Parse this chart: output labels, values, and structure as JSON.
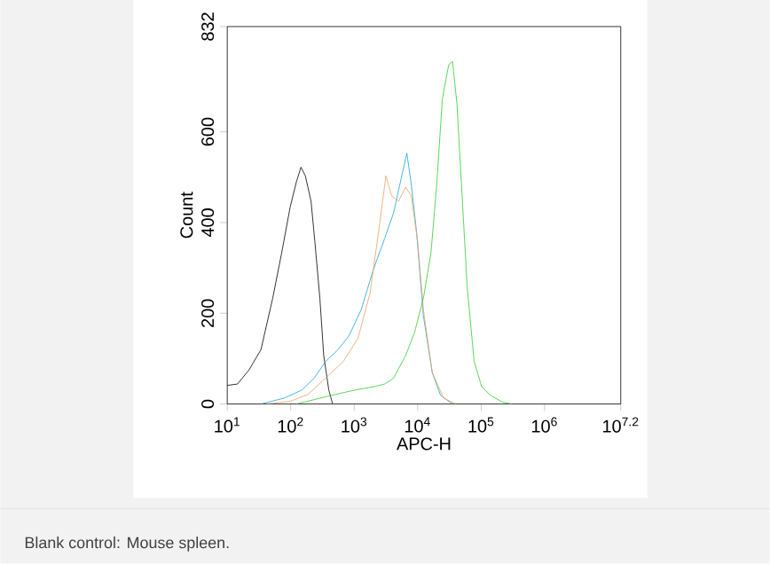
{
  "chart_data": {
    "type": "line",
    "xlabel": "APC-H",
    "ylabel": "Count",
    "log": "x",
    "line_style": "solid",
    "xlim": [
      10,
      15848932
    ],
    "ylim": [
      0,
      832
    ],
    "xticks": [
      {
        "value": 10,
        "label": "10$^{1}$"
      },
      {
        "value": 100,
        "label": "10$^{2}$"
      },
      {
        "value": 1000,
        "label": "10$^{3}$"
      },
      {
        "value": 10000,
        "label": "10$^{4}$"
      },
      {
        "value": 100000,
        "label": "10$^{5}$"
      },
      {
        "value": 1000000,
        "label": "10$^{6}$"
      },
      {
        "value": 15848932,
        "label": "10$^{7.2}$"
      }
    ],
    "yticks": [
      0,
      200,
      400,
      600,
      832
    ],
    "series": [
      {
        "color": "#000000",
        "x": [
          10,
          14.5,
          22,
          34,
          52,
          72,
          98,
          123,
          145,
          170,
          209,
          240,
          288,
          331,
          398,
          457
        ],
        "values": [
          41,
          44,
          75,
          120,
          233,
          333,
          434,
          490,
          522,
          503,
          447,
          358,
          233,
          107,
          31,
          0
        ]
      },
      {
        "color": "#1aa3d9",
        "x": [
          34,
          79,
          151,
          234,
          355,
          550,
          832,
          1290,
          2000,
          3020,
          4170,
          5500,
          6760,
          7940,
          9600,
          12300,
          17000,
          23000,
          35500
        ],
        "values": [
          0,
          13,
          31,
          57,
          94,
          119,
          151,
          208,
          296,
          365,
          421,
          497,
          553,
          484,
          380,
          195,
          69,
          19,
          0
        ]
      },
      {
        "color": "#f0a060",
        "x": [
          42,
          98,
          186,
          355,
          676,
          1150,
          1780,
          2450,
          3160,
          3890,
          5000,
          6460,
          7940,
          10000,
          12300,
          17000,
          25700,
          39800
        ],
        "values": [
          0,
          6,
          21,
          57,
          94,
          145,
          245,
          384,
          503,
          459,
          447,
          478,
          459,
          358,
          208,
          69,
          13,
          0
        ]
      },
      {
        "color": "#33cc33",
        "x": [
          123,
          437,
          1050,
          2000,
          3020,
          4170,
          6460,
          8910,
          12300,
          16200,
          20000,
          24500,
          30900,
          35500,
          41700,
          49000,
          60300,
          77600,
          102000,
          141000,
          219000,
          302000
        ],
        "values": [
          0,
          19,
          31,
          38,
          44,
          57,
          107,
          157,
          233,
          333,
          484,
          673,
          748,
          755,
          660,
          484,
          258,
          94,
          38,
          19,
          4,
          0
        ]
      }
    ],
    "annotations": [
      "Blank control: Mouse spleen."
    ]
  }
}
